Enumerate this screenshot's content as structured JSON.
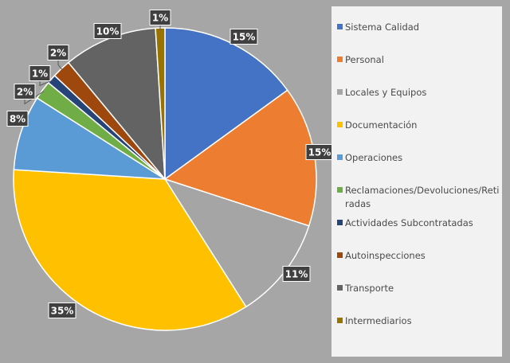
{
  "chart_data": {
    "type": "pie",
    "categories": [
      "Sistema Calidad",
      "Personal",
      "Locales y Equipos",
      "Documentación",
      "Operaciones",
      "Reclamaciones/Devoluciones/Retiradas",
      "Actividades Subcontratadas",
      "Autoinspecciones",
      "Transporte",
      "Intermediarios"
    ],
    "values": [
      15,
      15,
      11,
      35,
      8,
      2,
      1,
      2,
      10,
      1
    ],
    "labels": [
      "15%",
      "15%",
      "11%",
      "35%",
      "8%",
      "2%",
      "1%",
      "2%",
      "10%",
      "1%"
    ],
    "colors": [
      "#4472c4",
      "#ed7d31",
      "#a5a5a5",
      "#ffc000",
      "#5b9bd5",
      "#70ad47",
      "#264478",
      "#9e480e",
      "#636363",
      "#997300"
    ],
    "legend_lines": [
      [
        "Sistema Calidad"
      ],
      [
        "Personal"
      ],
      [
        "Locales y Equipos"
      ],
      [
        "Documentación"
      ],
      [
        "Operaciones"
      ],
      [
        "Reclamaciones/Devoluciones/Reti",
        "radas"
      ],
      [
        "Actividades Subcontratadas"
      ],
      [
        "Autoinspecciones"
      ],
      [
        "Transporte"
      ],
      [
        "Intermediarios"
      ]
    ],
    "legend_position": "right",
    "start_angle_deg": 0,
    "direction": "clockwise"
  }
}
